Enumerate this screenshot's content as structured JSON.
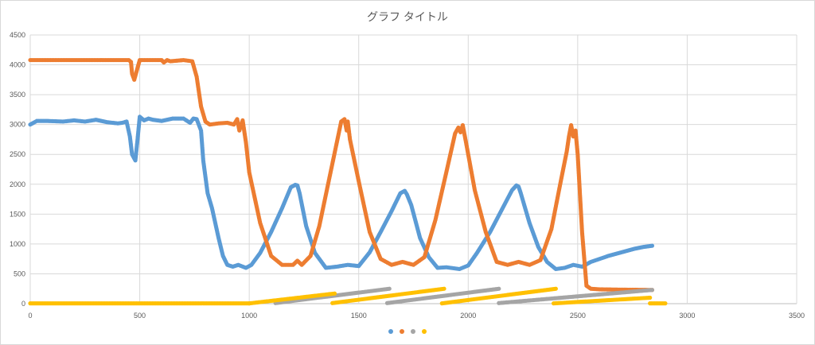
{
  "chart_data": {
    "type": "scatter",
    "title": "グラフ タイトル",
    "xlabel": "",
    "ylabel": "",
    "xlim": [
      0,
      3500
    ],
    "ylim": [
      0,
      4500
    ],
    "x_ticks": [
      0,
      500,
      1000,
      1500,
      2000,
      2500,
      3000,
      3500
    ],
    "y_ticks": [
      0,
      500,
      1000,
      1500,
      2000,
      2500,
      3000,
      3500,
      4000,
      4500
    ],
    "grid": true,
    "legend_position": "bottom",
    "series": [
      {
        "color": "#5b9bd5",
        "x": [
          0,
          30,
          80,
          150,
          200,
          250,
          300,
          350,
          400,
          420,
          440,
          455,
          465,
          480,
          490,
          500,
          520,
          540,
          560,
          600,
          650,
          700,
          730,
          745,
          760,
          780,
          790,
          810,
          830,
          860,
          880,
          900,
          925,
          950,
          985,
          1010,
          1050,
          1100,
          1150,
          1190,
          1210,
          1220,
          1230,
          1260,
          1300,
          1350,
          1400,
          1450,
          1500,
          1550,
          1600,
          1650,
          1690,
          1710,
          1720,
          1740,
          1780,
          1820,
          1860,
          1900,
          1960,
          2000,
          2040,
          2100,
          2150,
          2200,
          2220,
          2230,
          2240,
          2280,
          2320,
          2360,
          2400,
          2440,
          2480,
          2520,
          2560,
          2600,
          2640,
          2700,
          2760,
          2800,
          2840
        ],
        "y": [
          3000,
          3060,
          3060,
          3050,
          3070,
          3050,
          3080,
          3040,
          3020,
          3030,
          3050,
          2800,
          2500,
          2400,
          2750,
          3130,
          3070,
          3100,
          3080,
          3060,
          3100,
          3100,
          3030,
          3100,
          3090,
          2900,
          2400,
          1850,
          1600,
          1100,
          800,
          650,
          620,
          650,
          600,
          650,
          850,
          1200,
          1600,
          1950,
          1990,
          1980,
          1850,
          1300,
          850,
          600,
          620,
          650,
          630,
          860,
          1200,
          1550,
          1850,
          1890,
          1830,
          1650,
          1100,
          780,
          600,
          610,
          580,
          640,
          850,
          1200,
          1550,
          1900,
          1980,
          1960,
          1850,
          1350,
          950,
          700,
          580,
          600,
          650,
          620,
          700,
          750,
          800,
          860,
          920,
          950,
          970
        ]
      },
      {
        "color": "#ed7d31",
        "x": [
          0,
          100,
          200,
          300,
          400,
          450,
          460,
          465,
          475,
          490,
          500,
          550,
          600,
          610,
          625,
          640,
          700,
          740,
          760,
          780,
          800,
          820,
          860,
          900,
          930,
          945,
          955,
          970,
          985,
          1000,
          1050,
          1100,
          1150,
          1200,
          1220,
          1240,
          1280,
          1320,
          1360,
          1400,
          1420,
          1435,
          1445,
          1450,
          1460,
          1500,
          1550,
          1600,
          1650,
          1700,
          1750,
          1800,
          1850,
          1900,
          1940,
          1955,
          1965,
          1975,
          1990,
          2030,
          2080,
          2130,
          2180,
          2230,
          2280,
          2330,
          2380,
          2420,
          2450,
          2460,
          2470,
          2480,
          2490,
          2500,
          2520,
          2540,
          2560,
          2600,
          2700,
          2840
        ],
        "y": [
          4080,
          4080,
          4080,
          4080,
          4080,
          4080,
          4050,
          3850,
          3750,
          3950,
          4080,
          4080,
          4080,
          4040,
          4080,
          4060,
          4080,
          4060,
          3800,
          3300,
          3050,
          3000,
          3020,
          3030,
          3000,
          3090,
          2900,
          3070,
          2700,
          2200,
          1350,
          800,
          650,
          650,
          720,
          650,
          800,
          1300,
          2000,
          2700,
          3050,
          3090,
          2900,
          3050,
          2750,
          2050,
          1200,
          750,
          650,
          700,
          650,
          780,
          1400,
          2200,
          2850,
          2950,
          2870,
          2990,
          2700,
          1900,
          1200,
          700,
          650,
          700,
          650,
          730,
          1250,
          2000,
          2550,
          2800,
          2990,
          2800,
          2900,
          2500,
          1200,
          300,
          250,
          240,
          235,
          230
        ]
      },
      {
        "color": "#a5a5a5",
        "segments": [
          {
            "x": [
              1120,
              1640
            ],
            "y": [
              10,
              250
            ]
          },
          {
            "x": [
              1630,
              2140
            ],
            "y": [
              10,
              250
            ]
          },
          {
            "x": [
              2140,
              2840
            ],
            "y": [
              10,
              230
            ]
          }
        ]
      },
      {
        "color": "#ffc000",
        "segments": [
          {
            "x": [
              0,
              1000
            ],
            "y": [
              5,
              5
            ]
          },
          {
            "x": [
              1000,
              1390
            ],
            "y": [
              5,
              170
            ]
          },
          {
            "x": [
              1380,
              1890
            ],
            "y": [
              10,
              250
            ]
          },
          {
            "x": [
              1880,
              2400
            ],
            "y": [
              5,
              250
            ]
          },
          {
            "x": [
              2390,
              2830
            ],
            "y": [
              5,
              100
            ]
          },
          {
            "x": [
              2830,
              2900
            ],
            "y": [
              5,
              5
            ]
          }
        ]
      }
    ]
  }
}
